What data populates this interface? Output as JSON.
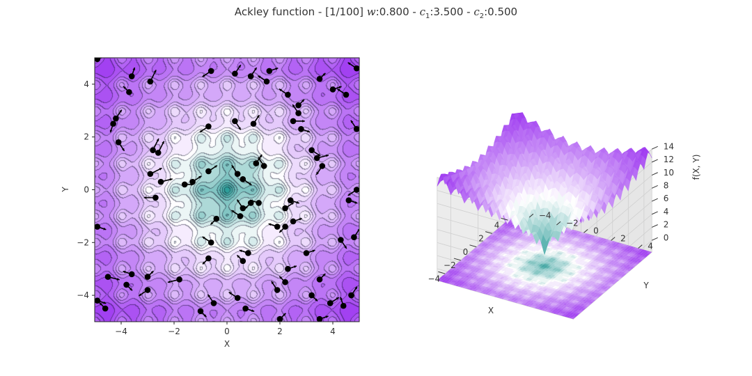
{
  "title": {
    "prefix": "Ackley function - [1/100] ",
    "w_label": "w",
    "w_value": ":0.800 - ",
    "c1_label": "c",
    "c1_sub": "1",
    "c1_value": ":3.500 - ",
    "c2_label": "c",
    "c2_sub": "2",
    "c2_value": ":0.500"
  },
  "colors": {
    "low": "#2e9e9a",
    "mid": "#ffffff",
    "high": "#9a30f0",
    "particle": "#000000"
  },
  "chart_data": [
    {
      "type": "contour",
      "function": "Ackley",
      "xlabel": "X",
      "ylabel": "Y",
      "xlim": [
        -5,
        5
      ],
      "ylim": [
        -5,
        5
      ],
      "xticks": [
        -4,
        -2,
        0,
        2,
        4
      ],
      "yticks": [
        -4,
        -2,
        0,
        2,
        4
      ],
      "particles": [
        {
          "x": -4.9,
          "y": 4.95,
          "dx": 0.3,
          "dy": 0.1
        },
        {
          "x": -3.6,
          "y": 4.3,
          "dx": 0.1,
          "dy": 0.3
        },
        {
          "x": -4.2,
          "y": 2.7,
          "dx": 0.2,
          "dy": 0.3
        },
        {
          "x": -4.3,
          "y": 2.5,
          "dx": -0.1,
          "dy": -0.3
        },
        {
          "x": -4.1,
          "y": 1.8,
          "dx": 0.2,
          "dy": -0.3
        },
        {
          "x": -3.7,
          "y": 3.7,
          "dx": -0.2,
          "dy": 0.2
        },
        {
          "x": -2.9,
          "y": 4.1,
          "dx": 0.2,
          "dy": 0.4
        },
        {
          "x": -2.5,
          "y": 0.3,
          "dx": 0.4,
          "dy": 0.1
        },
        {
          "x": -2.7,
          "y": -0.3,
          "dx": -0.4,
          "dy": 0.0
        },
        {
          "x": -2.8,
          "y": 1.5,
          "dx": 0.2,
          "dy": 0.4
        },
        {
          "x": -2.9,
          "y": 0.6,
          "dx": 0.4,
          "dy": 0.2
        },
        {
          "x": -2.6,
          "y": 1.4,
          "dx": 0.2,
          "dy": 0.4
        },
        {
          "x": -1.6,
          "y": 0.2,
          "dx": 0.3,
          "dy": 0.0
        },
        {
          "x": -1.3,
          "y": 0.3,
          "dx": 0.3,
          "dy": 0.2
        },
        {
          "x": -0.7,
          "y": 0.7,
          "dx": 0.3,
          "dy": 0.2
        },
        {
          "x": -0.6,
          "y": 4.5,
          "dx": -0.3,
          "dy": -0.2
        },
        {
          "x": 0.3,
          "y": 4.4,
          "dx": 0.2,
          "dy": 0.3
        },
        {
          "x": 0.9,
          "y": 4.3,
          "dx": 0.2,
          "dy": 0.3
        },
        {
          "x": 1.6,
          "y": 4.5,
          "dx": 0.3,
          "dy": 0.1
        },
        {
          "x": 1.5,
          "y": 4.1,
          "dx": -0.3,
          "dy": 0.2
        },
        {
          "x": 2.3,
          "y": 3.6,
          "dx": -0.3,
          "dy": 0.2
        },
        {
          "x": 2.7,
          "y": 3.2,
          "dx": 0.2,
          "dy": 0.2
        },
        {
          "x": 2.7,
          "y": 2.9,
          "dx": -0.2,
          "dy": 0.3
        },
        {
          "x": 2.5,
          "y": 2.6,
          "dx": 0.4,
          "dy": 0.0
        },
        {
          "x": 2.8,
          "y": 2.3,
          "dx": 0.3,
          "dy": -0.1
        },
        {
          "x": 3.5,
          "y": 4.2,
          "dx": 0.2,
          "dy": 0.2
        },
        {
          "x": 4.5,
          "y": 3.6,
          "dx": -0.3,
          "dy": 0.2
        },
        {
          "x": 4.0,
          "y": 3.8,
          "dx": 0.3,
          "dy": 0.1
        },
        {
          "x": 4.9,
          "y": 4.6,
          "dx": -0.3,
          "dy": 0.2
        },
        {
          "x": 3.2,
          "y": 1.5,
          "dx": 0.3,
          "dy": -0.2
        },
        {
          "x": 3.4,
          "y": 1.2,
          "dx": 0.4,
          "dy": 0.1
        },
        {
          "x": 3.6,
          "y": 0.9,
          "dx": -0.2,
          "dy": -0.3
        },
        {
          "x": 4.9,
          "y": 2.3,
          "dx": -0.2,
          "dy": 0.3
        },
        {
          "x": 4.9,
          "y": 0.0,
          "dx": -0.3,
          "dy": -0.2
        },
        {
          "x": 4.6,
          "y": -0.4,
          "dx": 0.3,
          "dy": -0.1
        },
        {
          "x": 1.0,
          "y": 2.5,
          "dx": 0.2,
          "dy": 0.3
        },
        {
          "x": 0.3,
          "y": 2.6,
          "dx": 0.2,
          "dy": -0.3
        },
        {
          "x": -0.7,
          "y": 2.4,
          "dx": -0.3,
          "dy": -0.2
        },
        {
          "x": 0.4,
          "y": 0.6,
          "dx": -0.2,
          "dy": 0.3
        },
        {
          "x": 0.6,
          "y": 0.4,
          "dx": 0.3,
          "dy": -0.2
        },
        {
          "x": 1.1,
          "y": 1.0,
          "dx": 0.2,
          "dy": 0.3
        },
        {
          "x": 1.4,
          "y": 0.9,
          "dx": -0.2,
          "dy": 0.3
        },
        {
          "x": 1.2,
          "y": -0.5,
          "dx": -0.3,
          "dy": 0.1
        },
        {
          "x": 0.9,
          "y": -0.5,
          "dx": -0.2,
          "dy": -0.2
        },
        {
          "x": 0.6,
          "y": -0.7,
          "dx": -0.2,
          "dy": 0.3
        },
        {
          "x": 0.5,
          "y": -1.0,
          "dx": -0.3,
          "dy": 0.2
        },
        {
          "x": -0.4,
          "y": -1.1,
          "dx": -0.2,
          "dy": -0.2
        },
        {
          "x": 1.9,
          "y": -1.4,
          "dx": -0.3,
          "dy": 0.1
        },
        {
          "x": 2.2,
          "y": -1.4,
          "dx": -0.2,
          "dy": -0.2
        },
        {
          "x": 2.2,
          "y": -0.7,
          "dx": 0.3,
          "dy": 0.2
        },
        {
          "x": 2.4,
          "y": -0.4,
          "dx": 0.3,
          "dy": -0.1
        },
        {
          "x": 2.5,
          "y": -1.2,
          "dx": 0.3,
          "dy": 0.1
        },
        {
          "x": 3.0,
          "y": -2.4,
          "dx": 0.3,
          "dy": 0.1
        },
        {
          "x": 4.3,
          "y": -1.9,
          "dx": 0.2,
          "dy": -0.3
        },
        {
          "x": 4.8,
          "y": -1.8,
          "dx": 0.2,
          "dy": 0.3
        },
        {
          "x": -0.6,
          "y": -2.0,
          "dx": -0.3,
          "dy": 0.2
        },
        {
          "x": 0.8,
          "y": -2.4,
          "dx": -0.3,
          "dy": 0.1
        },
        {
          "x": 0.6,
          "y": -2.7,
          "dx": -0.2,
          "dy": 0.2
        },
        {
          "x": -0.7,
          "y": -2.6,
          "dx": -0.2,
          "dy": -0.2
        },
        {
          "x": -4.9,
          "y": -1.4,
          "dx": 0.3,
          "dy": -0.1
        },
        {
          "x": -4.5,
          "y": -3.3,
          "dx": 0.4,
          "dy": -0.1
        },
        {
          "x": -3.6,
          "y": -3.2,
          "dx": -0.3,
          "dy": 0.1
        },
        {
          "x": -3.8,
          "y": -3.6,
          "dx": 0.2,
          "dy": -0.2
        },
        {
          "x": -4.9,
          "y": -4.2,
          "dx": 0.3,
          "dy": -0.1
        },
        {
          "x": -4.6,
          "y": -4.5,
          "dx": -0.2,
          "dy": 0.2
        },
        {
          "x": -3.0,
          "y": -3.3,
          "dx": 0.2,
          "dy": 0.2
        },
        {
          "x": -3.0,
          "y": -3.8,
          "dx": -0.3,
          "dy": -0.2
        },
        {
          "x": -1.8,
          "y": -3.4,
          "dx": -0.4,
          "dy": -0.1
        },
        {
          "x": -1.0,
          "y": -4.6,
          "dx": 0.2,
          "dy": -0.2
        },
        {
          "x": -0.5,
          "y": -4.3,
          "dx": -0.2,
          "dy": 0.3
        },
        {
          "x": 0.4,
          "y": -4.1,
          "dx": -0.3,
          "dy": 0.2
        },
        {
          "x": 0.7,
          "y": -4.5,
          "dx": 0.3,
          "dy": -0.1
        },
        {
          "x": 2.0,
          "y": -4.9,
          "dx": 0.2,
          "dy": 0.2
        },
        {
          "x": 1.9,
          "y": -3.8,
          "dx": -0.2,
          "dy": 0.3
        },
        {
          "x": 2.2,
          "y": -3.5,
          "dx": -0.2,
          "dy": 0.2
        },
        {
          "x": 2.3,
          "y": -3.0,
          "dx": 0.3,
          "dy": 0.1
        },
        {
          "x": 3.5,
          "y": -3.4,
          "dx": 0.2,
          "dy": 0.2
        },
        {
          "x": 3.2,
          "y": -4.0,
          "dx": 0.2,
          "dy": -0.2
        },
        {
          "x": 3.9,
          "y": -4.3,
          "dx": 0.3,
          "dy": 0.2
        },
        {
          "x": 4.4,
          "y": -4.4,
          "dx": -0.1,
          "dy": 0.3
        },
        {
          "x": 4.7,
          "y": -4.0,
          "dx": 0.2,
          "dy": 0.3
        },
        {
          "x": 3.5,
          "y": -4.9,
          "dx": 0.3,
          "dy": 0.1
        }
      ]
    },
    {
      "type": "surface3d",
      "function": "Ackley",
      "xlabel": "X",
      "ylabel": "Y",
      "zlabel": "f(X, Y)",
      "xlim": [
        -5,
        5
      ],
      "ylim": [
        -5,
        5
      ],
      "zlim": [
        0,
        14
      ],
      "xticks": [
        -4,
        -2,
        0,
        2,
        4
      ],
      "yticks": [
        -4,
        -2,
        0,
        2,
        4
      ],
      "zticks": [
        0,
        2,
        4,
        6,
        8,
        10,
        12,
        14
      ]
    }
  ]
}
